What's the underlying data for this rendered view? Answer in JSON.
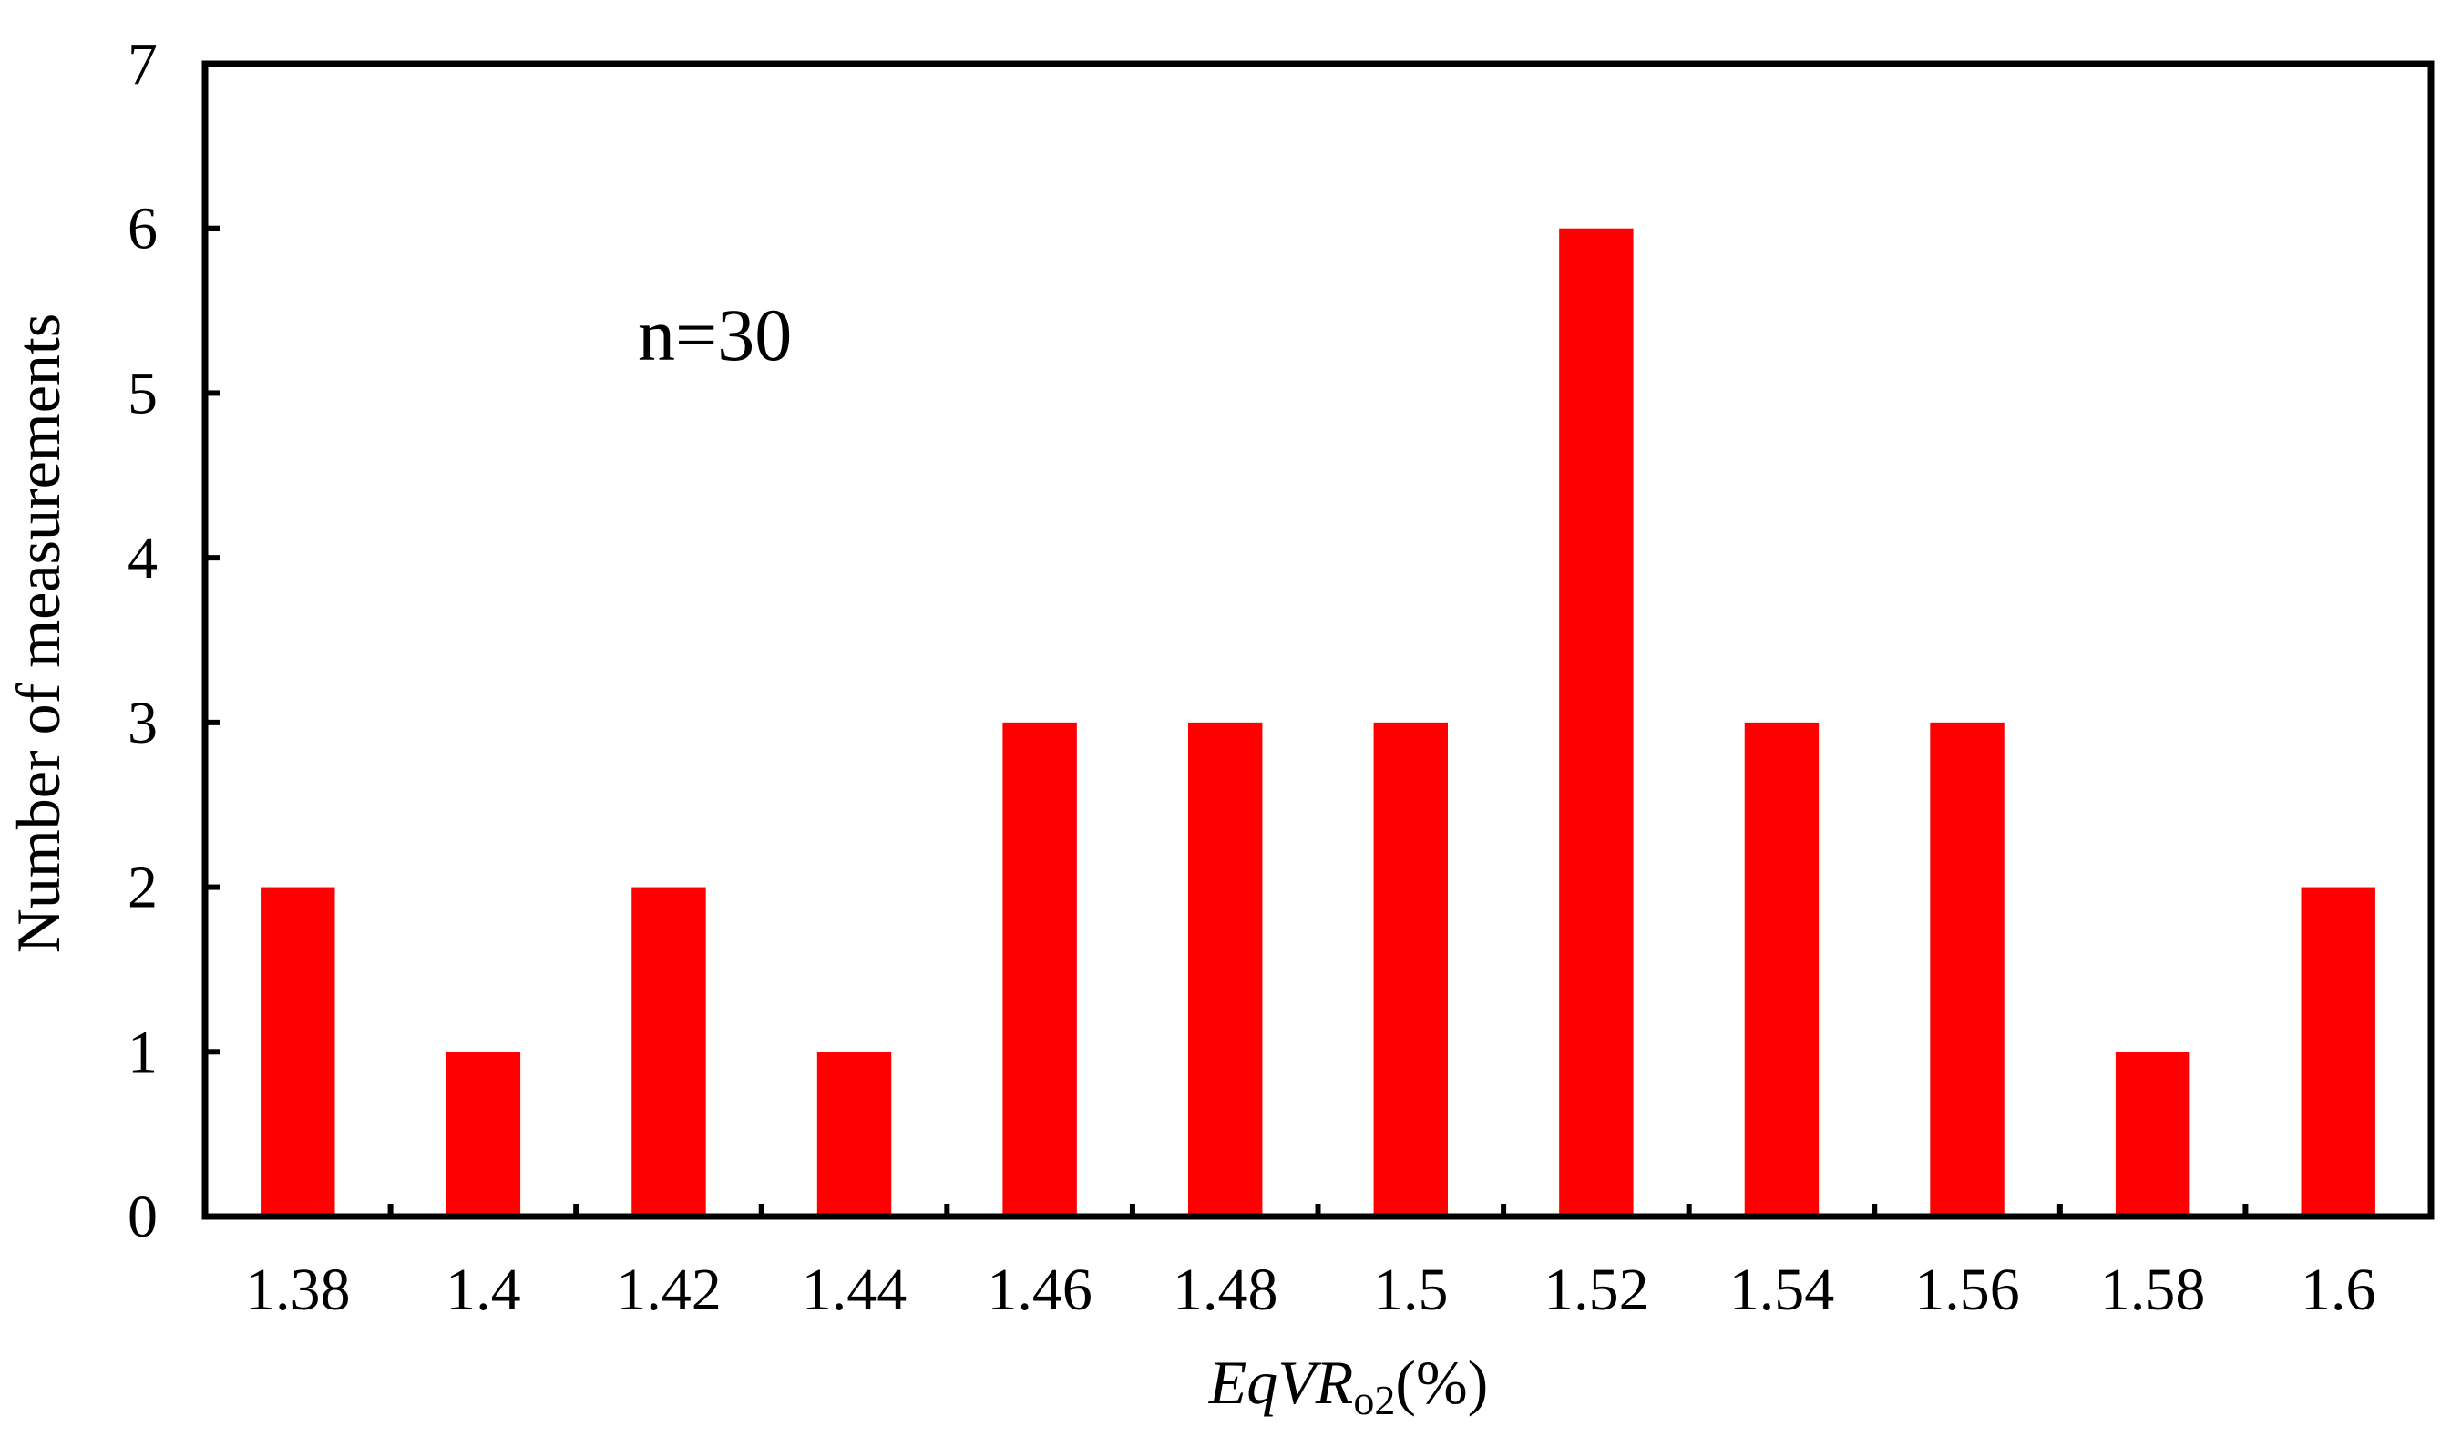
{
  "chart_data": {
    "type": "bar",
    "categories": [
      "1.38",
      "1.4",
      "1.42",
      "1.44",
      "1.46",
      "1.48",
      "1.5",
      "1.52",
      "1.54",
      "1.56",
      "1.58",
      "1.6"
    ],
    "values": [
      2,
      1,
      2,
      1,
      3,
      3,
      3,
      6,
      3,
      3,
      1,
      2
    ],
    "xlabel": {
      "main": "EqVR",
      "subscript": "o2",
      "suffix": "(%)"
    },
    "ylabel": "Number of measurements",
    "ylim": [
      0,
      7
    ],
    "yticks": [
      0,
      1,
      2,
      3,
      4,
      5,
      6,
      7
    ],
    "annotation": "n=30",
    "grid": false,
    "legend": "none",
    "bar_color": "#ff0000",
    "axis_color": "#000000"
  }
}
